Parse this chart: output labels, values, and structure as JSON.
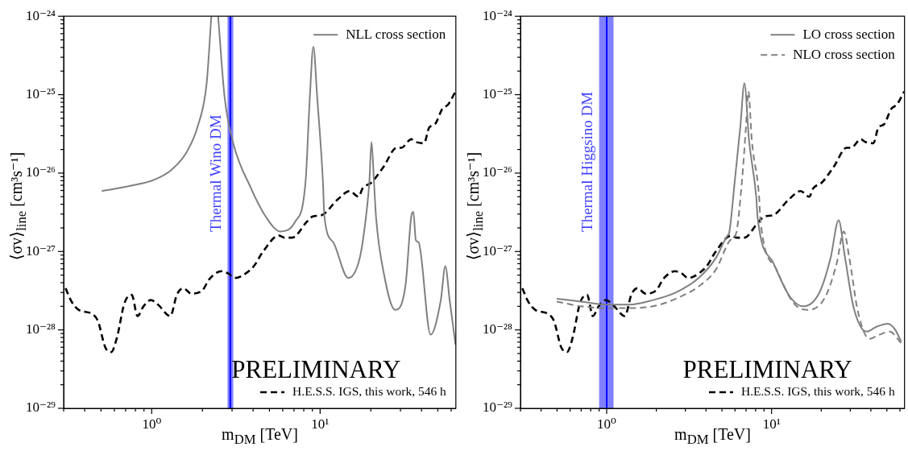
{
  "chart_data": [
    {
      "type": "line",
      "log": "xy",
      "xlabel": "m$_{DM}$ [TeV]",
      "ylabel": "⟨σv⟩$_{line}$ [cm³s⁻¹]",
      "xlim": [
        0.3,
        64
      ],
      "ylim": [
        1e-29,
        1e-24
      ],
      "xticks": [
        {
          "value": 0.3,
          "label": null
        },
        {
          "value": 0.4,
          "label": null
        },
        {
          "value": 0.5,
          "label": null
        },
        {
          "value": 0.6,
          "label": null
        },
        {
          "value": 0.7,
          "label": null
        },
        {
          "value": 0.8,
          "label": null
        },
        {
          "value": 0.9,
          "label": null
        },
        {
          "value": 1,
          "label": "10⁰"
        },
        {
          "value": 2,
          "label": null
        },
        {
          "value": 3,
          "label": null
        },
        {
          "value": 4,
          "label": null
        },
        {
          "value": 5,
          "label": null
        },
        {
          "value": 6,
          "label": null
        },
        {
          "value": 7,
          "label": null
        },
        {
          "value": 8,
          "label": null
        },
        {
          "value": 9,
          "label": null
        },
        {
          "value": 10,
          "label": "10¹"
        },
        {
          "value": 20,
          "label": null
        },
        {
          "value": 30,
          "label": null
        },
        {
          "value": 40,
          "label": null
        },
        {
          "value": 50,
          "label": null
        },
        {
          "value": 60,
          "label": null
        }
      ],
      "yticks": [
        {
          "value": 1e-29,
          "label": "10⁻²⁹"
        },
        {
          "value": 2e-29,
          "label": null
        },
        {
          "value": 3e-29,
          "label": null
        },
        {
          "value": 4e-29,
          "label": null
        },
        {
          "value": 5e-29,
          "label": null
        },
        {
          "value": 6e-29,
          "label": null
        },
        {
          "value": 7e-29,
          "label": null
        },
        {
          "value": 8e-29,
          "label": null
        },
        {
          "value": 9e-29,
          "label": null
        },
        {
          "value": 1e-28,
          "label": "10⁻²⁸"
        },
        {
          "value": 2e-28,
          "label": null
        },
        {
          "value": 3e-28,
          "label": null
        },
        {
          "value": 4e-28,
          "label": null
        },
        {
          "value": 5e-28,
          "label": null
        },
        {
          "value": 6e-28,
          "label": null
        },
        {
          "value": 7e-28,
          "label": null
        },
        {
          "value": 8e-28,
          "label": null
        },
        {
          "value": 9e-28,
          "label": null
        },
        {
          "value": 1e-27,
          "label": "10⁻²⁷"
        },
        {
          "value": 2e-27,
          "label": null
        },
        {
          "value": 3e-27,
          "label": null
        },
        {
          "value": 4e-27,
          "label": null
        },
        {
          "value": 5e-27,
          "label": null
        },
        {
          "value": 6e-27,
          "label": null
        },
        {
          "value": 7e-27,
          "label": null
        },
        {
          "value": 8e-27,
          "label": null
        },
        {
          "value": 9e-27,
          "label": null
        },
        {
          "value": 1e-26,
          "label": "10⁻²⁶"
        },
        {
          "value": 2e-26,
          "label": null
        },
        {
          "value": 3e-26,
          "label": null
        },
        {
          "value": 4e-26,
          "label": null
        },
        {
          "value": 5e-26,
          "label": null
        },
        {
          "value": 6e-26,
          "label": null
        },
        {
          "value": 7e-26,
          "label": null
        },
        {
          "value": 8e-26,
          "label": null
        },
        {
          "value": 9e-26,
          "label": null
        },
        {
          "value": 1e-25,
          "label": "10⁻²⁵"
        },
        {
          "value": 2e-25,
          "label": null
        },
        {
          "value": 3e-25,
          "label": null
        },
        {
          "value": 4e-25,
          "label": null
        },
        {
          "value": 5e-25,
          "label": null
        },
        {
          "value": 6e-25,
          "label": null
        },
        {
          "value": 7e-25,
          "label": null
        },
        {
          "value": 8e-25,
          "label": null
        },
        {
          "value": 9e-25,
          "label": null
        },
        {
          "value": 1e-24,
          "label": "10⁻²⁴"
        }
      ],
      "legend": "right",
      "bands": [
        {
          "axis": "x",
          "from": 2.82,
          "to": 3.05,
          "color": "#8080ff"
        }
      ],
      "ref_lines": [
        {
          "axis": "x",
          "value": 2.93,
          "label": "Thermal Wino DM",
          "color": "#0000ff"
        }
      ],
      "annotations": [
        "PRELIMINARY"
      ],
      "series": [
        {
          "name": "NLL cross section",
          "color": "#808080",
          "line_style": "solid",
          "x": [
            0.505,
            0.776,
            1.03,
            1.31,
            1.6,
            1.88,
            2.12,
            2.26,
            2.37,
            2.48,
            2.71,
            3.05,
            3.89,
            4.75,
            5.81,
            7.11,
            8.19,
            8.69,
            9.12,
            9.61,
            10.4,
            10.6,
            12,
            14.7,
            17.2,
            18.7,
            19.6,
            20.2,
            20.9,
            21.5,
            23.8,
            27.9,
            32.1,
            34.8,
            35.8,
            37,
            38.5,
            45.3,
            52.1,
            55.4,
            58.8,
            63.7
          ],
          "values": [
            5.9e-27,
            7e-27,
            8.2e-27,
            1.1e-26,
            1.8e-26,
            4e-26,
            1.4e-25,
            1e-24,
            null,
            1e-24,
            9.3e-26,
            2.4e-26,
            6.4e-27,
            2.8e-27,
            1.8e-27,
            2.4e-27,
            7.6e-27,
            9.3e-26,
            4.1e-25,
            9.3e-26,
            7.6e-27,
            2.8e-27,
            1.3e-27,
            4.6e-28,
            8.3e-28,
            2.7e-27,
            7.6e-27,
            2.5e-26,
            7.6e-27,
            2.7e-27,
            5.5e-28,
            1.8e-28,
            3.6e-28,
            2.8e-27,
            3.2e-27,
            1.4e-27,
            1.3e-27,
            8.7e-29,
            2.4e-28,
            6.5e-28,
            2.4e-28,
            6.5e-29
          ]
        },
        {
          "name": "H.E.S.S. IGS, this work, 546 h",
          "color": "#000000",
          "line_style": "dashed",
          "x": [
            0.308,
            0.334,
            0.369,
            0.442,
            0.479,
            0.53,
            0.574,
            0.622,
            0.689,
            0.761,
            0.824,
            0.894,
            0.989,
            1.09,
            1.29,
            1.41,
            1.54,
            1.72,
            2,
            2.21,
            2.6,
            2.87,
            3.11,
            3.37,
            4.04,
            4.56,
            5.69,
            6.17,
            6.82,
            8.35,
            9.05,
            10.2,
            12.7,
            15,
            16.9,
            17.9,
            20.2,
            23.8,
            28.5,
            30.3,
            34.8,
            37,
            41.4,
            44.4,
            48.1,
            53.2,
            57.6,
            63.7
          ],
          "values": [
            3.4e-28,
            2.3e-28,
            1.8e-28,
            1.6e-28,
            1.3e-28,
            6e-29,
            5.2e-29,
            8e-29,
            2.2e-28,
            2.8e-28,
            1.5e-28,
            2e-28,
            2.4e-28,
            2.1e-28,
            1.5e-28,
            2.8e-28,
            3.4e-28,
            2.9e-28,
            3.2e-28,
            4.5e-28,
            5.6e-28,
            5.2e-28,
            4.6e-28,
            4.8e-28,
            6.5e-28,
            9.8e-28,
            1.6e-27,
            1.5e-27,
            1.5e-27,
            2.4e-27,
            2.8e-27,
            2.9e-27,
            4.6e-27,
            5.9e-27,
            5e-27,
            6.4e-27,
            7.6e-27,
            1.2e-26,
            2.1e-26,
            2.1e-26,
            2.7e-26,
            2.5e-26,
            2.4e-26,
            3.8e-26,
            4.2e-26,
            6.6e-26,
            7.5e-26,
            1.1e-25
          ]
        }
      ]
    },
    {
      "type": "line",
      "log": "xy",
      "xlabel": "m$_{DM}$ [TeV]",
      "ylabel": "⟨σv⟩$_{line}$ [cm³s⁻¹]",
      "xlim": [
        0.3,
        64
      ],
      "ylim": [
        1e-29,
        1e-24
      ],
      "xticks": [
        {
          "value": 0.3,
          "label": null
        },
        {
          "value": 0.4,
          "label": null
        },
        {
          "value": 0.5,
          "label": null
        },
        {
          "value": 0.6,
          "label": null
        },
        {
          "value": 0.7,
          "label": null
        },
        {
          "value": 0.8,
          "label": null
        },
        {
          "value": 0.9,
          "label": null
        },
        {
          "value": 1,
          "label": "10⁰"
        },
        {
          "value": 2,
          "label": null
        },
        {
          "value": 3,
          "label": null
        },
        {
          "value": 4,
          "label": null
        },
        {
          "value": 5,
          "label": null
        },
        {
          "value": 6,
          "label": null
        },
        {
          "value": 7,
          "label": null
        },
        {
          "value": 8,
          "label": null
        },
        {
          "value": 9,
          "label": null
        },
        {
          "value": 10,
          "label": "10¹"
        },
        {
          "value": 20,
          "label": null
        },
        {
          "value": 30,
          "label": null
        },
        {
          "value": 40,
          "label": null
        },
        {
          "value": 50,
          "label": null
        },
        {
          "value": 60,
          "label": null
        }
      ],
      "yticks": [
        {
          "value": 1e-29,
          "label": "10⁻²⁹"
        },
        {
          "value": 2e-29,
          "label": null
        },
        {
          "value": 3e-29,
          "label": null
        },
        {
          "value": 4e-29,
          "label": null
        },
        {
          "value": 5e-29,
          "label": null
        },
        {
          "value": 6e-29,
          "label": null
        },
        {
          "value": 7e-29,
          "label": null
        },
        {
          "value": 8e-29,
          "label": null
        },
        {
          "value": 9e-29,
          "label": null
        },
        {
          "value": 1e-28,
          "label": "10⁻²⁸"
        },
        {
          "value": 2e-28,
          "label": null
        },
        {
          "value": 3e-28,
          "label": null
        },
        {
          "value": 4e-28,
          "label": null
        },
        {
          "value": 5e-28,
          "label": null
        },
        {
          "value": 6e-28,
          "label": null
        },
        {
          "value": 7e-28,
          "label": null
        },
        {
          "value": 8e-28,
          "label": null
        },
        {
          "value": 9e-28,
          "label": null
        },
        {
          "value": 1e-27,
          "label": "10⁻²⁷"
        },
        {
          "value": 2e-27,
          "label": null
        },
        {
          "value": 3e-27,
          "label": null
        },
        {
          "value": 4e-27,
          "label": null
        },
        {
          "value": 5e-27,
          "label": null
        },
        {
          "value": 6e-27,
          "label": null
        },
        {
          "value": 7e-27,
          "label": null
        },
        {
          "value": 8e-27,
          "label": null
        },
        {
          "value": 9e-27,
          "label": null
        },
        {
          "value": 1e-26,
          "label": "10⁻²⁶"
        },
        {
          "value": 2e-26,
          "label": null
        },
        {
          "value": 3e-26,
          "label": null
        },
        {
          "value": 4e-26,
          "label": null
        },
        {
          "value": 5e-26,
          "label": null
        },
        {
          "value": 6e-26,
          "label": null
        },
        {
          "value": 7e-26,
          "label": null
        },
        {
          "value": 8e-26,
          "label": null
        },
        {
          "value": 9e-26,
          "label": null
        },
        {
          "value": 1e-25,
          "label": "10⁻²⁵"
        },
        {
          "value": 2e-25,
          "label": null
        },
        {
          "value": 3e-25,
          "label": null
        },
        {
          "value": 4e-25,
          "label": null
        },
        {
          "value": 5e-25,
          "label": null
        },
        {
          "value": 6e-25,
          "label": null
        },
        {
          "value": 7e-25,
          "label": null
        },
        {
          "value": 8e-25,
          "label": null
        },
        {
          "value": 9e-25,
          "label": null
        },
        {
          "value": 1e-24,
          "label": "10⁻²⁴"
        }
      ],
      "legend": "right",
      "bands": [
        {
          "axis": "x",
          "from": 0.9,
          "to": 1.1,
          "color": "#8080ff"
        }
      ],
      "ref_lines": [
        {
          "axis": "x",
          "value": 1,
          "label": "Thermal Higgsino DM",
          "color": "#0000ff"
        }
      ],
      "annotations": [
        "PRELIMINARY"
      ],
      "series": [
        {
          "name": "LO cross section",
          "color": "#808080",
          "line_style": "solid",
          "x": [
            0.498,
            0.7,
            1,
            1.38,
            1.91,
            2.63,
            3.62,
            4.6,
            5.41,
            5.52,
            5.97,
            6.47,
            6.84,
            7.3,
            8.07,
            8.23,
            10.3,
            13,
            15.6,
            19.5,
            22.8,
            25.5,
            27.9,
            31.5,
            37.7,
            43.4,
            50.9,
            56.3,
            61
          ],
          "values": [
            2.5e-28,
            2.3e-28,
            2.1e-28,
            2.1e-28,
            2.4e-28,
            3e-28,
            4.6e-28,
            8.3e-28,
            1.6e-27,
            1.7e-27,
            7.6e-27,
            4e-26,
            1.4e-25,
            2.6e-26,
            5e-27,
            2.7e-27,
            7e-28,
            2.6e-28,
            2e-28,
            3e-28,
            8.3e-28,
            2.5e-27,
            8.3e-28,
            1.9e-28,
            9.5e-29,
            1.1e-28,
            1.2e-28,
            1e-28,
            7.1e-29
          ]
        },
        {
          "name": "NLO cross section",
          "color": "#808080",
          "line_style": "dashed",
          "x": [
            0.498,
            0.7,
            1,
            1.38,
            1.91,
            2.63,
            3.62,
            4.6,
            5.62,
            6.09,
            6.6,
            7,
            7.23,
            7.59,
            8.4,
            8.56,
            10.7,
            13.6,
            16.6,
            21.1,
            24.8,
            27.4,
            29.6,
            33.4,
            39.2,
            45.1,
            51.9,
            61
          ],
          "values": [
            2.3e-28,
            2e-28,
            1.9e-28,
            1.9e-28,
            2e-28,
            2.5e-28,
            3.6e-28,
            5.9e-28,
            1.4e-27,
            1.7e-27,
            7.6e-27,
            4e-26,
            1.1e-25,
            2.6e-26,
            5e-27,
            2.5e-27,
            5.9e-28,
            2.2e-28,
            1.8e-28,
            2.6e-28,
            7e-28,
            1.8e-27,
            8.3e-28,
            1.7e-28,
            7.7e-29,
            8.7e-29,
            9.5e-29,
            6.8e-29
          ]
        },
        {
          "name": "H.E.S.S. IGS, this work, 546 h",
          "color": "#000000",
          "line_style": "dashed",
          "x": [
            0.308,
            0.334,
            0.369,
            0.442,
            0.479,
            0.53,
            0.574,
            0.622,
            0.689,
            0.761,
            0.824,
            0.894,
            0.989,
            1.09,
            1.29,
            1.41,
            1.54,
            1.72,
            2,
            2.21,
            2.6,
            2.87,
            3.11,
            3.37,
            4.04,
            4.56,
            5.69,
            6.17,
            6.82,
            8.35,
            9.05,
            10.2,
            12.7,
            15,
            16.9,
            17.9,
            20.2,
            23.8,
            28.5,
            30.3,
            34.8,
            37,
            41.4,
            44.4,
            48.1,
            53.2,
            57.6,
            63.7
          ],
          "values": [
            3.4e-28,
            2.3e-28,
            1.8e-28,
            1.6e-28,
            1.3e-28,
            6e-29,
            5.2e-29,
            8e-29,
            2.2e-28,
            2.8e-28,
            1.5e-28,
            2e-28,
            2.4e-28,
            2.1e-28,
            1.5e-28,
            2.8e-28,
            3.4e-28,
            2.9e-28,
            3.2e-28,
            4.5e-28,
            5.6e-28,
            5.2e-28,
            4.6e-28,
            4.8e-28,
            6.5e-28,
            9.8e-28,
            1.6e-27,
            1.5e-27,
            1.5e-27,
            2.4e-27,
            2.8e-27,
            2.9e-27,
            4.6e-27,
            5.9e-27,
            5e-27,
            6.4e-27,
            7.6e-27,
            1.2e-26,
            2.1e-26,
            2.1e-26,
            2.7e-26,
            2.5e-26,
            2.4e-26,
            3.8e-26,
            4.2e-26,
            6.6e-26,
            7.5e-26,
            1.1e-25
          ]
        }
      ]
    }
  ]
}
